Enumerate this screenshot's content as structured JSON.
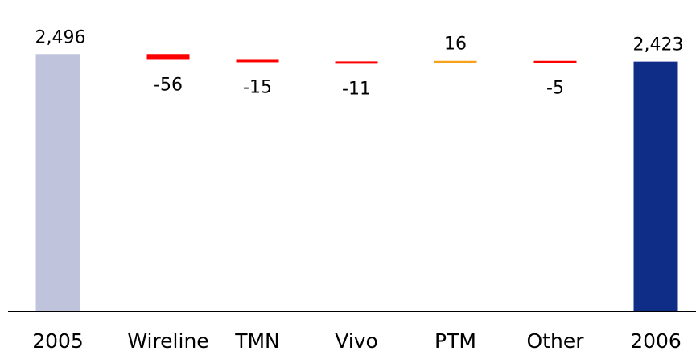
{
  "chart_data": {
    "type": "bar",
    "subtype": "waterfall",
    "categories": [
      "2005",
      "Wireline",
      "TMN",
      "Vivo",
      "PTM",
      "Other",
      "2006"
    ],
    "values": [
      2496,
      -56,
      -15,
      -11,
      16,
      -5,
      2423
    ],
    "kinds": [
      "total",
      "delta",
      "delta",
      "delta",
      "delta",
      "delta",
      "total"
    ],
    "value_labels": [
      "2,496",
      "-56",
      "-15",
      "-11",
      "16",
      "-5",
      "2,423"
    ],
    "colors": {
      "start_total": "#c0c3dc",
      "end_total": "#0f2c87",
      "decrease": "#ff0000",
      "increase": "#f7a21b",
      "axis": "#000000"
    },
    "title": "",
    "xlabel": "",
    "ylabel": "",
    "grid": false,
    "legend": "none"
  }
}
